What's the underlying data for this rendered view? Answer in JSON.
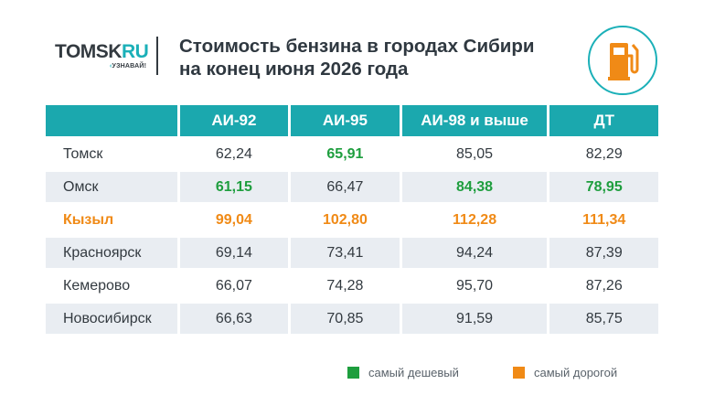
{
  "logo": {
    "main": "TOMSK",
    "accent": "RU",
    "tagline": "УЗНАВАЙ!"
  },
  "title_line1": "Стоимость бензина в городах Сибири",
  "title_line2": "на конец июня 2026 года",
  "colors": {
    "teal": "#1ba8ae",
    "cheapest": "#1e9e3e",
    "most_expensive": "#f08a16",
    "row_alt": "#e9edf2"
  },
  "icons": [
    "fuel-pump-icon"
  ],
  "chart_data": {
    "type": "table",
    "columns": [
      "АИ-92",
      "АИ-95",
      "АИ-98 и выше",
      "ДТ"
    ],
    "rows": [
      {
        "city": "Томск",
        "values": [
          "62,24",
          "65,91",
          "85,05",
          "82,29"
        ],
        "highlights": [
          "",
          "cheap",
          "",
          ""
        ]
      },
      {
        "city": "Омск",
        "values": [
          "61,15",
          "66,47",
          "84,38",
          "78,95"
        ],
        "highlights": [
          "cheap",
          "",
          "cheap",
          "cheap"
        ]
      },
      {
        "city": "Кызыл",
        "values": [
          "99,04",
          "102,80",
          "112,28",
          "111,34"
        ],
        "highlights": [
          "exp",
          "exp",
          "exp",
          "exp"
        ]
      },
      {
        "city": "Красноярск",
        "values": [
          "69,14",
          "73,41",
          "94,24",
          "87,39"
        ],
        "highlights": [
          "",
          "",
          "",
          ""
        ]
      },
      {
        "city": "Кемерово",
        "values": [
          "66,07",
          "74,28",
          "95,70",
          "87,26"
        ],
        "highlights": [
          "",
          "",
          "",
          ""
        ]
      },
      {
        "city": "Новосибирск",
        "values": [
          "66,63",
          "70,85",
          "91,59",
          "85,75"
        ],
        "highlights": [
          "",
          "",
          "",
          ""
        ]
      }
    ]
  },
  "legend": {
    "cheapest": "самый дешевый",
    "most_expensive": "самый дорогой"
  }
}
